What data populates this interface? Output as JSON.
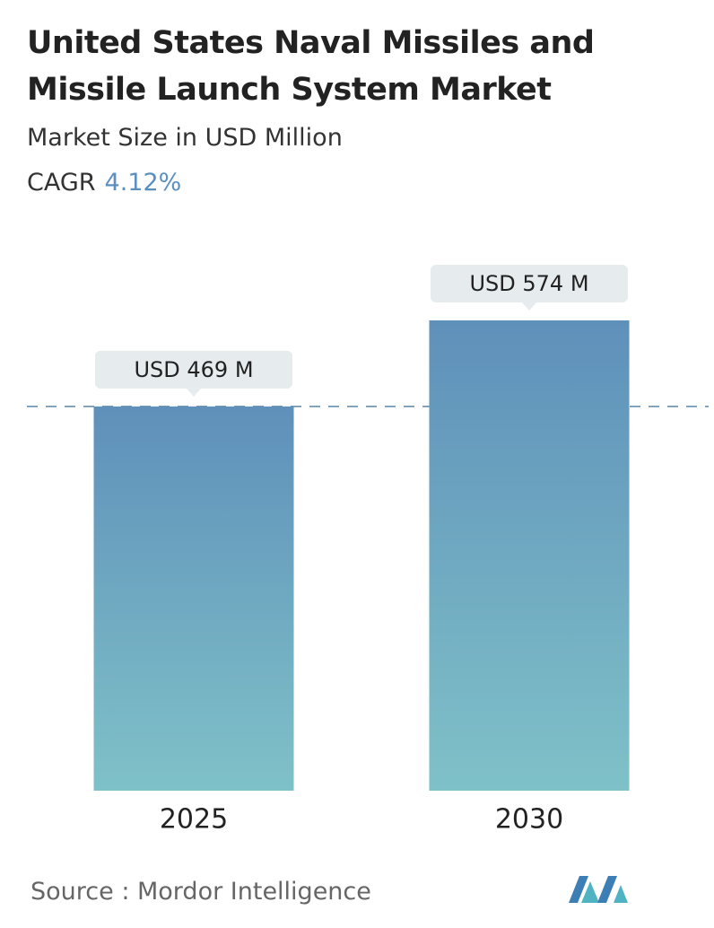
{
  "chart_data": {
    "type": "bar",
    "title": "United States Naval Missiles and Missile Launch System Market",
    "subtitle": "Market Size in USD Million",
    "cagr_label": "CAGR",
    "cagr_value": "4.12%",
    "categories": [
      "2025",
      "2030"
    ],
    "values": [
      469,
      574
    ],
    "value_labels": [
      "USD 469 M",
      "USD 574 M"
    ],
    "source": "Source :  Mordor Intelligence"
  }
}
